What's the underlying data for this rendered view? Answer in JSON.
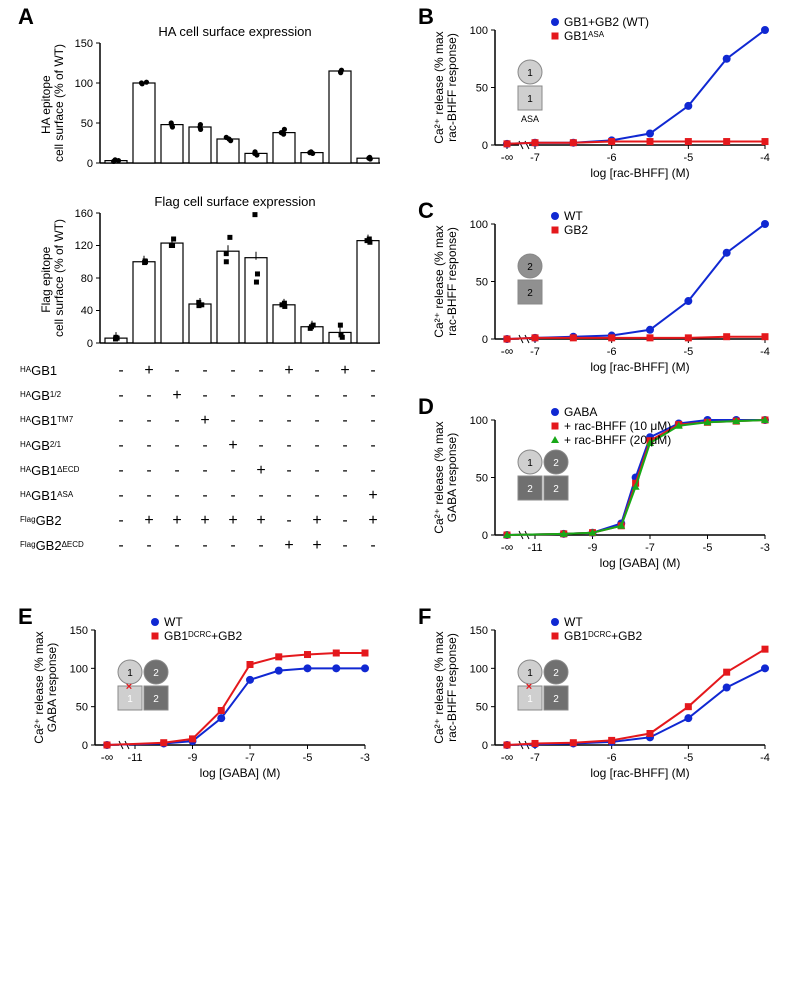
{
  "panels": {
    "A": {
      "label": "A",
      "ha_chart": {
        "type": "bar",
        "title": "HA cell surface expression",
        "ylabel": "HA epitope\ncell surface (% of WT)",
        "ylim": [
          0,
          150
        ],
        "yticks": [
          0,
          50,
          100,
          150
        ],
        "values": [
          3,
          100,
          48,
          45,
          30,
          12,
          38,
          13,
          115,
          6
        ],
        "scatter": [
          [
            2,
            4,
            3
          ],
          [
            100,
            99,
            101
          ],
          [
            50,
            47,
            45
          ],
          [
            45,
            42,
            48
          ],
          [
            28,
            32,
            30
          ],
          [
            10,
            12,
            14
          ],
          [
            36,
            38,
            42
          ],
          [
            12,
            14,
            13
          ],
          [
            113,
            116,
            114
          ],
          [
            5,
            7,
            6
          ]
        ],
        "bar_color": "#ffffff",
        "bar_stroke": "#000000",
        "scatter_color": "#000000"
      },
      "flag_chart": {
        "type": "bar",
        "title": "Flag cell surface expression",
        "ylabel": "Flag epitope\ncell surface (% of WT)",
        "ylim": [
          0,
          160
        ],
        "yticks": [
          0,
          40,
          80,
          120,
          160
        ],
        "values": [
          6,
          100,
          123,
          48,
          113,
          105,
          47,
          20,
          13,
          126
        ],
        "scatter": [
          [
            5,
            7,
            6
          ],
          [
            100,
            99,
            101
          ],
          [
            120,
            128,
            120
          ],
          [
            46,
            50,
            47
          ],
          [
            110,
            130,
            100
          ],
          [
            85,
            158,
            75
          ],
          [
            45,
            49,
            47
          ],
          [
            18,
            22,
            20
          ],
          [
            7,
            10,
            22
          ],
          [
            124,
            128,
            126
          ]
        ],
        "bar_color": "#ffffff",
        "bar_stroke": "#000000",
        "scatter_color": "#000000"
      },
      "matrix_rows": [
        "ᴴᴬGB1",
        "ᴴᴬGB1/2",
        "ᴴᴬGB1ᵀᴹ⁷",
        "ᴴᴬGB2/1",
        "ᴴᴬGB1ᴬᴱᶜᴰ",
        "ᴴᴬGB1ᴬˢᴬ",
        "ᶠˡᵃᵍGB2",
        "ᶠˡᵃᵍGB2ᴬᴱᶜᴰ"
      ],
      "matrix_row_labels": [
        "HA_GB1",
        "HA_GB1_2",
        "HA_GB1_TM7",
        "HA_GB2_1",
        "HA_GB1_dECD",
        "HA_GB1_ASA",
        "Flag_GB2",
        "Flag_GB2_dECD"
      ],
      "matrix": [
        [
          "-",
          "+",
          "-",
          "-",
          "-",
          "-",
          "+",
          "-",
          "+",
          "-"
        ],
        [
          "-",
          "-",
          "+",
          "-",
          "-",
          "-",
          "-",
          "-",
          "-",
          "-"
        ],
        [
          "-",
          "-",
          "-",
          "+",
          "-",
          "-",
          "-",
          "-",
          "-",
          "-"
        ],
        [
          "-",
          "-",
          "-",
          "-",
          "+",
          "-",
          "-",
          "-",
          "-",
          "-"
        ],
        [
          "-",
          "-",
          "-",
          "-",
          "-",
          "+",
          "-",
          "-",
          "-",
          "-"
        ],
        [
          "-",
          "-",
          "-",
          "-",
          "-",
          "-",
          "-",
          "-",
          "-",
          "+"
        ],
        [
          "-",
          "+",
          "+",
          "+",
          "+",
          "+",
          "-",
          "+",
          "-",
          "+"
        ],
        [
          "-",
          "-",
          "-",
          "-",
          "-",
          "-",
          "+",
          "+",
          "-",
          "-"
        ]
      ]
    },
    "B": {
      "label": "B",
      "type": "line",
      "ylabel": "Ca²⁺ release (% max\nrac-BHFF response)",
      "xlabel": "log [rac-BHFF] (M)",
      "legend": [
        "GB1+GB2 (WT)",
        "GB1ᴬˢᴬ"
      ],
      "colors": [
        "#1028d2",
        "#e4181c"
      ],
      "markers": [
        "circle",
        "square"
      ],
      "ylim": [
        0,
        100
      ],
      "yticks": [
        0,
        50,
        100
      ],
      "x_ticks": [
        "-∞",
        "-7",
        "-6",
        "-5",
        "-4"
      ],
      "series1_x": [
        -8,
        -7,
        -6.5,
        -6,
        -5.5,
        -5,
        -4.5,
        -4
      ],
      "series1_y": [
        1,
        2,
        2,
        4,
        10,
        34,
        75,
        100
      ],
      "series2_x": [
        -8,
        -7,
        -6.5,
        -6,
        -5.5,
        -5,
        -4.5,
        -4
      ],
      "series2_y": [
        1,
        2,
        2,
        3,
        3,
        3,
        3,
        3
      ],
      "inset_labels": [
        "1",
        "1"
      ],
      "inset_bottom": "ASA"
    },
    "C": {
      "label": "C",
      "type": "line",
      "ylabel": "Ca²⁺ release (% max\nrac-BHFF response)",
      "xlabel": "log [rac-BHFF] (M)",
      "legend": [
        "WT",
        "GB2"
      ],
      "colors": [
        "#1028d2",
        "#e4181c"
      ],
      "markers": [
        "circle",
        "square"
      ],
      "ylim": [
        0,
        100
      ],
      "yticks": [
        0,
        50,
        100
      ],
      "x_ticks": [
        "-∞",
        "-7",
        "-6",
        "-5",
        "-4"
      ],
      "series1_x": [
        -8,
        -7,
        -6.5,
        -6,
        -5.5,
        -5,
        -4.5,
        -4
      ],
      "series1_y": [
        0,
        1,
        2,
        3,
        8,
        33,
        75,
        100
      ],
      "series2_x": [
        -8,
        -7,
        -6.5,
        -6,
        -5.5,
        -5,
        -4.5,
        -4
      ],
      "series2_y": [
        0,
        1,
        1,
        1,
        1,
        1,
        2,
        2
      ],
      "inset_labels": [
        "2",
        "2"
      ]
    },
    "D": {
      "label": "D",
      "type": "line",
      "ylabel": "Ca²⁺ release (% max\nGABA response)",
      "xlabel": "log [GABA] (M)",
      "legend": [
        "GABA",
        "+ rac-BHFF (10 μM)",
        "+ rac-BHFF (20 μM)"
      ],
      "colors": [
        "#1028d2",
        "#e4181c",
        "#18a818"
      ],
      "markers": [
        "circle",
        "square",
        "triangle"
      ],
      "ylim": [
        0,
        100
      ],
      "yticks": [
        0,
        50,
        100
      ],
      "x_ticks": [
        "-∞",
        "-11",
        "-9",
        "-7",
        "-5",
        "-3"
      ],
      "series1_x": [
        -12,
        -10,
        -9,
        -8,
        -7.5,
        -7,
        -6,
        -5,
        -4,
        -3
      ],
      "series1_y": [
        0,
        1,
        2,
        10,
        50,
        85,
        97,
        100,
        100,
        100
      ],
      "series2_x": [
        -12,
        -10,
        -9,
        -8,
        -7.5,
        -7,
        -6,
        -5,
        -4,
        -3
      ],
      "series2_y": [
        0,
        1,
        2,
        8,
        45,
        82,
        96,
        98,
        99,
        100
      ],
      "series3_x": [
        -12,
        -10,
        -9,
        -8,
        -7.5,
        -7,
        -6,
        -5,
        -4,
        -3
      ],
      "series3_y": [
        0,
        1,
        2,
        8,
        42,
        80,
        95,
        98,
        99,
        100
      ],
      "inset_labels": [
        "1",
        "2",
        "2",
        "2"
      ]
    },
    "E": {
      "label": "E",
      "type": "line",
      "ylabel": "Ca²⁺ release (% max\nGABA response)",
      "xlabel": "log [GABA] (M)",
      "legend": [
        "WT",
        "GB1ᴰᶜᴿᶜ+GB2"
      ],
      "colors": [
        "#1028d2",
        "#e4181c"
      ],
      "markers": [
        "circle",
        "square"
      ],
      "ylim": [
        0,
        150
      ],
      "yticks": [
        0,
        50,
        100,
        150
      ],
      "x_ticks": [
        "-∞",
        "-11",
        "-9",
        "-7",
        "-5",
        "-3"
      ],
      "series1_x": [
        -12,
        -10,
        -9,
        -8,
        -7,
        -6,
        -5,
        -4,
        -3
      ],
      "series1_y": [
        0,
        2,
        5,
        35,
        85,
        97,
        100,
        100,
        100
      ],
      "series2_x": [
        -12,
        -10,
        -9,
        -8,
        -7,
        -6,
        -5,
        -4,
        -3
      ],
      "series2_y": [
        0,
        3,
        8,
        45,
        105,
        115,
        118,
        120,
        120
      ],
      "inset_labels": [
        "1",
        "2",
        "1",
        "2"
      ],
      "inset_x": true
    },
    "F": {
      "label": "F",
      "type": "line",
      "ylabel": "Ca²⁺ release (% max\nrac-BHFF response)",
      "xlabel": "log [rac-BHFF] (M)",
      "legend": [
        "WT",
        "GB1ᴰᶜᴿᶜ+GB2"
      ],
      "colors": [
        "#1028d2",
        "#e4181c"
      ],
      "markers": [
        "circle",
        "square"
      ],
      "ylim": [
        0,
        150
      ],
      "yticks": [
        0,
        50,
        100,
        150
      ],
      "x_ticks": [
        "-∞",
        "-7",
        "-6",
        "-5",
        "-4"
      ],
      "series1_x": [
        -8,
        -7,
        -6.5,
        -6,
        -5.5,
        -5,
        -4.5,
        -4
      ],
      "series1_y": [
        0,
        1,
        2,
        4,
        10,
        35,
        75,
        100
      ],
      "series2_x": [
        -8,
        -7,
        -6.5,
        -6,
        -5.5,
        -5,
        -4.5,
        -4
      ],
      "series2_y": [
        0,
        2,
        3,
        6,
        15,
        50,
        95,
        125
      ],
      "inset_labels": [
        "1",
        "2",
        "1",
        "2"
      ],
      "inset_x": true
    }
  }
}
